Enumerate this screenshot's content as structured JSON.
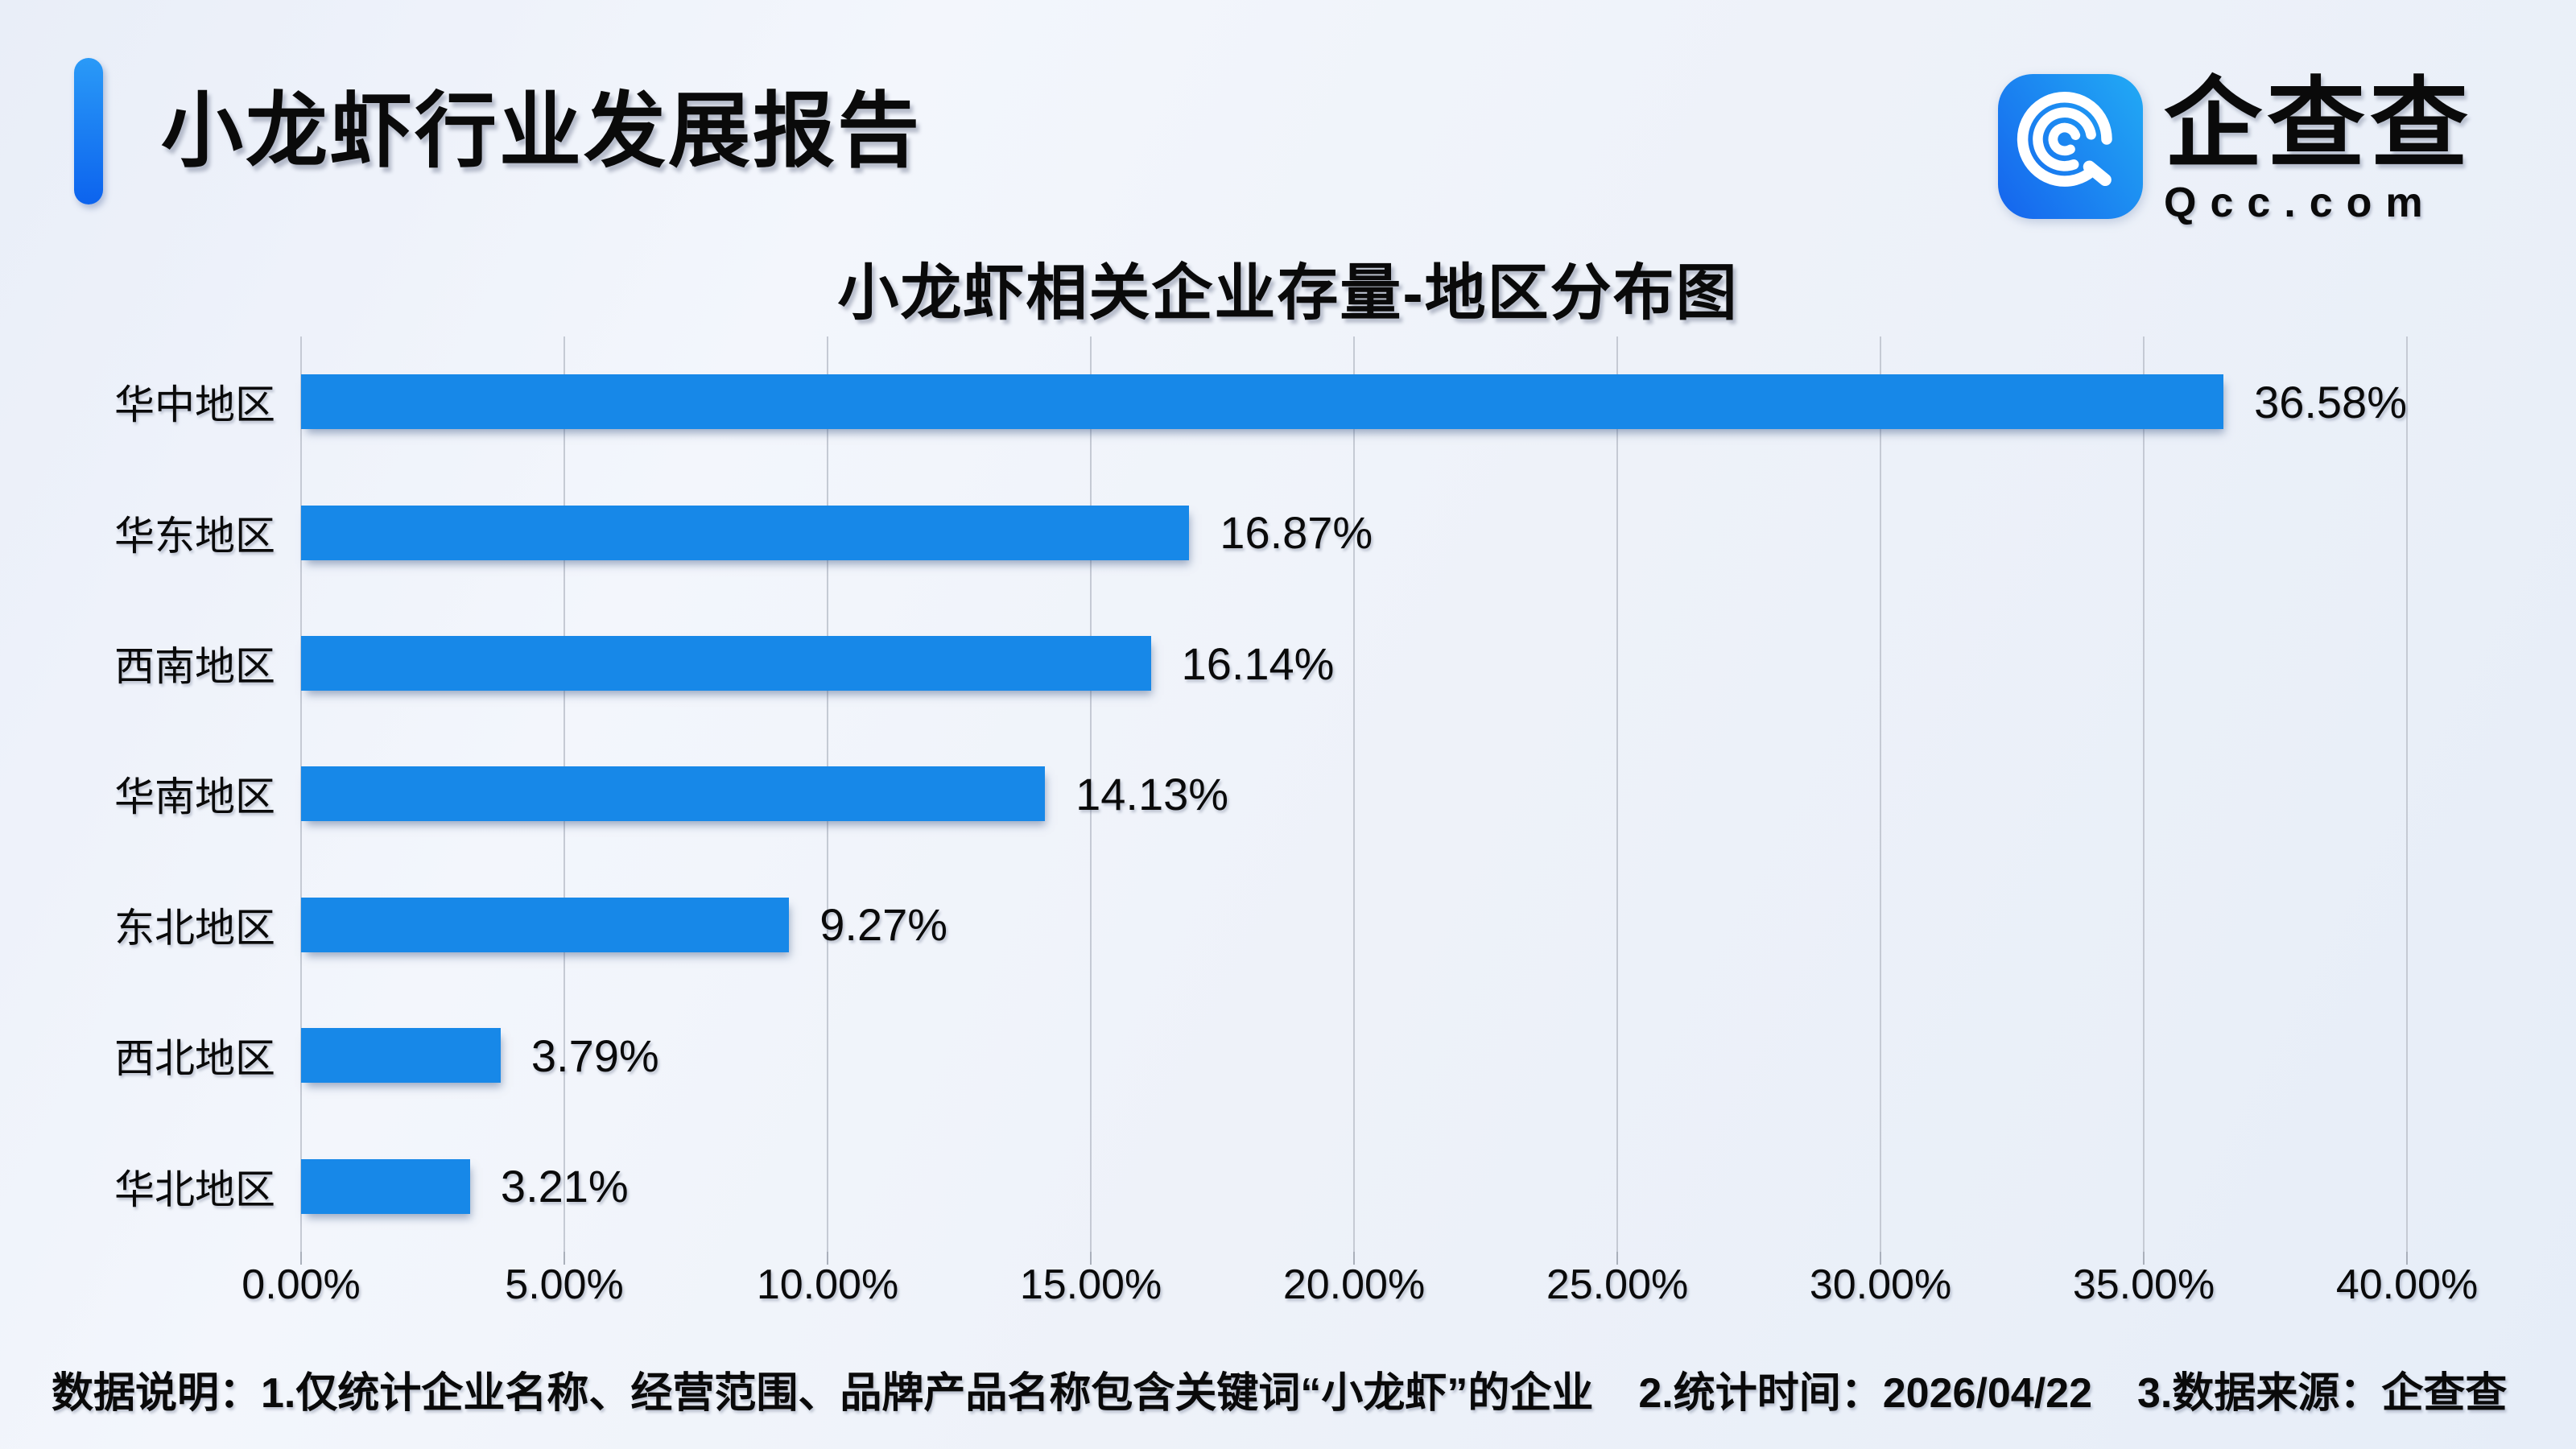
{
  "page": {
    "background_color": "#edf2f9"
  },
  "header": {
    "title": "小龙虾行业发展报告",
    "accent_color": "#0d6ef5"
  },
  "brand": {
    "name": "企查查",
    "domain": "Qcc.com",
    "logo_color_start": "#1668ee",
    "logo_color_end": "#21a6f4"
  },
  "chart_data": {
    "type": "bar",
    "orientation": "horizontal",
    "title": "小龙虾相关企业存量-地区分布图",
    "categories": [
      "华中地区",
      "华东地区",
      "西南地区",
      "华南地区",
      "东北地区",
      "西北地区",
      "华北地区"
    ],
    "values": [
      36.58,
      16.87,
      16.14,
      14.13,
      9.27,
      3.79,
      3.21
    ],
    "value_labels": [
      "36.58%",
      "16.87%",
      "16.14%",
      "14.13%",
      "9.27%",
      "3.79%",
      "3.21%"
    ],
    "x_ticks": [
      "0.00%",
      "5.00%",
      "10.00%",
      "15.00%",
      "20.00%",
      "25.00%",
      "30.00%",
      "35.00%",
      "40.00%"
    ],
    "xlim": [
      0,
      40
    ],
    "xlabel": "",
    "ylabel": "",
    "bar_color": "#1788e8",
    "grid": true,
    "legend": false
  },
  "footer": {
    "label": "数据说明：",
    "items": [
      "1.仅统计企业名称、经营范围、品牌产品名称包含关键词“小龙虾”的企业",
      "2.统计时间：2026/04/22",
      "3.数据来源：企查查"
    ]
  }
}
